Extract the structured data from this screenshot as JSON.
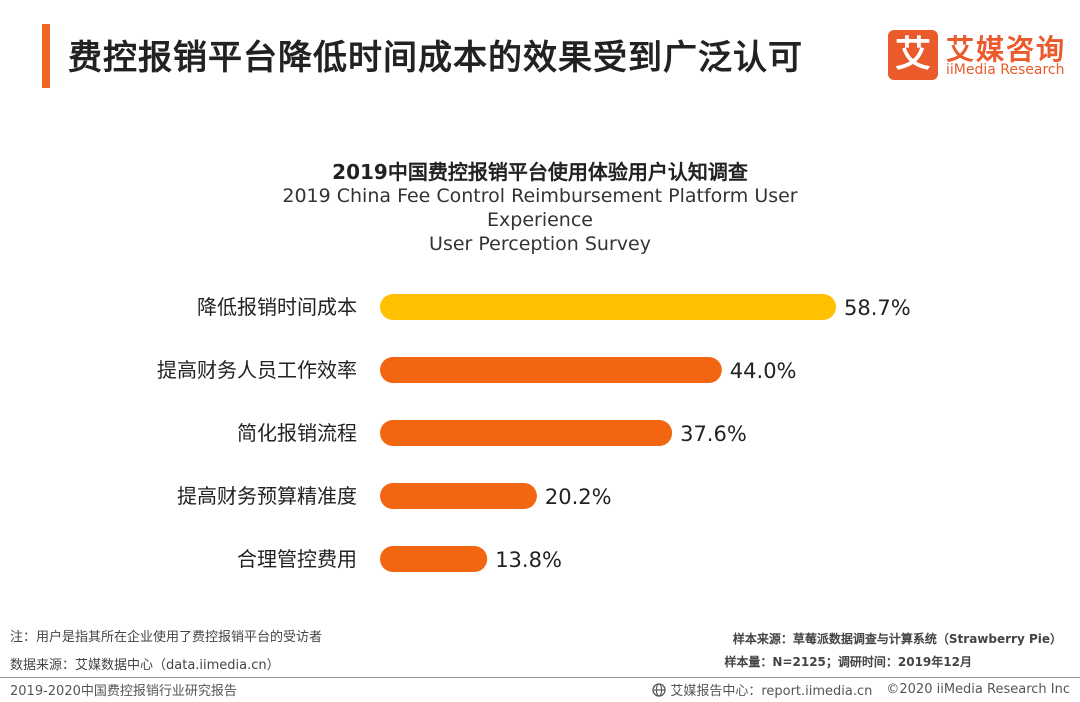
{
  "header": {
    "title": "费控报销平台降低时间成本的效果受到广泛认可",
    "logo_mark": "艾",
    "logo_cn": "艾媒咨询",
    "logo_en": "iiMedia Research"
  },
  "chart_data": {
    "type": "bar",
    "orientation": "horizontal",
    "title": "2019中国费控报销平台使用体验用户认知调查",
    "subtitle_line1": "2019 China Fee Control Reimbursement Platform User Experience",
    "subtitle_line2": "User Perception Survey",
    "categories": [
      "降低报销时间成本",
      "提高财务人员工作效率",
      "简化报销流程",
      "提高财务预算精准度",
      "合理管控费用"
    ],
    "values": [
      58.7,
      44.0,
      37.6,
      20.2,
      13.8
    ],
    "value_labels": [
      "58.7%",
      "44.0%",
      "37.6%",
      "20.2%",
      "13.8%"
    ],
    "unit": "%",
    "xlim": [
      0,
      100
    ],
    "grid": false,
    "highlight_color": "#ffc000",
    "bar_color": "#f26511"
  },
  "footnotes": {
    "note": "注：用户是指其所在企业使用了费控报销平台的受访者",
    "data_source": "数据来源：艾媒数据中心（data.iimedia.cn）",
    "sample_source": "样本来源：草莓派数据调查与计算系统（Strawberry Pie）",
    "sample_size": "样本量：N=2125；调研时间：2019年12月"
  },
  "footer": {
    "report_name": "2019-2020中国费控报销行业研究报告",
    "report_center": "艾媒报告中心：report.iimedia.cn",
    "copyright": "©2020  iiMedia Research  Inc"
  }
}
